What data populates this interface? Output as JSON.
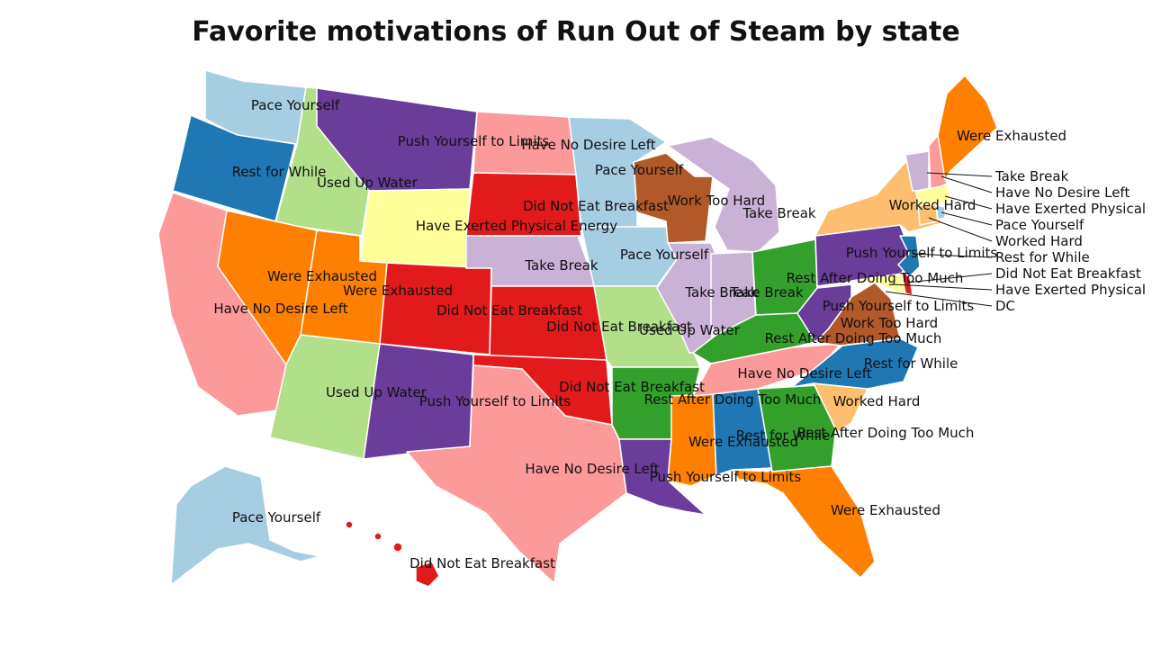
{
  "title": "Favorite motivations of Run Out of Steam by state",
  "legend_colors": {
    "Pace Yourself": "#a6cee3",
    "Rest for While": "#1f78b4",
    "Used Up Water": "#b2df8a",
    "Rest After Doing Too Much": "#33a02c",
    "Have No Desire Left": "#fb9a99",
    "Did Not Eat Breakfast": "#e31a1c",
    "Worked Hard": "#fdbf6f",
    "Were Exhausted": "#ff7f00",
    "Take Break": "#cab2d6",
    "Push Yourself to Limits": "#6a3d9a",
    "Have Exerted Physical Energy": "#ffff99",
    "Work Too Hard": "#b15928"
  },
  "labels": {
    "WA": "Pace Yourself",
    "OR": "Rest for While",
    "ID": "Used Up Water",
    "MT": "Push Yourself to Limits",
    "ND": "Have No Desire Left",
    "MN": "Pace Yourself",
    "WI": "Work Too Hard",
    "MI": "Take Break",
    "SD": "Did Not Eat Breakfast",
    "WY": "Have Exerted Physical Energy",
    "NV": "Were Exhausted",
    "UT": "Were Exhausted",
    "CA": "Have No Desire Left",
    "CO": "Did Not Eat Breakfast",
    "NE": "Take Break",
    "IA": "Pace Yourself",
    "KS": "Did Not Eat Breakfast",
    "MO": "Used Up Water",
    "IL": "Take Break",
    "IN": "Take Break",
    "OH": "Rest After Doing Too Much",
    "PA": "Push Yourself to Limits",
    "NY": "Worked Hard",
    "ME": "Were Exhausted",
    "WV": "Push Yourself to Limits",
    "VA": "Work Too Hard",
    "KY": "Rest After Doing Too Much",
    "TN": "Have No Desire Left",
    "NC": "Rest for While",
    "SC": "Worked Hard",
    "GA": "Rest After Doing Too Much",
    "AL": "Rest for While",
    "MS": "Were Exhausted",
    "AR": "Rest After Doing Too Much",
    "LA": "Push Yourself to Limits",
    "FL": "Were Exhausted",
    "OK": "Did Not Eat Breakfast",
    "TX": "Have No Desire Left",
    "NM": "Push Yourself to Limits",
    "AZ": "Used Up Water",
    "AK": "Pace Yourself",
    "HI": "Did Not Eat Breakfast"
  },
  "callouts": {
    "VT": "Take Break",
    "NH": "Have No Desire Left",
    "MA": "Have Exerted Physical",
    "RI": "Pace Yourself",
    "CT": "Worked Hard",
    "NJ": "Rest for While",
    "DE": "Did Not Eat Breakfast",
    "MD": "Have Exerted Physical",
    "DC": "DC"
  }
}
